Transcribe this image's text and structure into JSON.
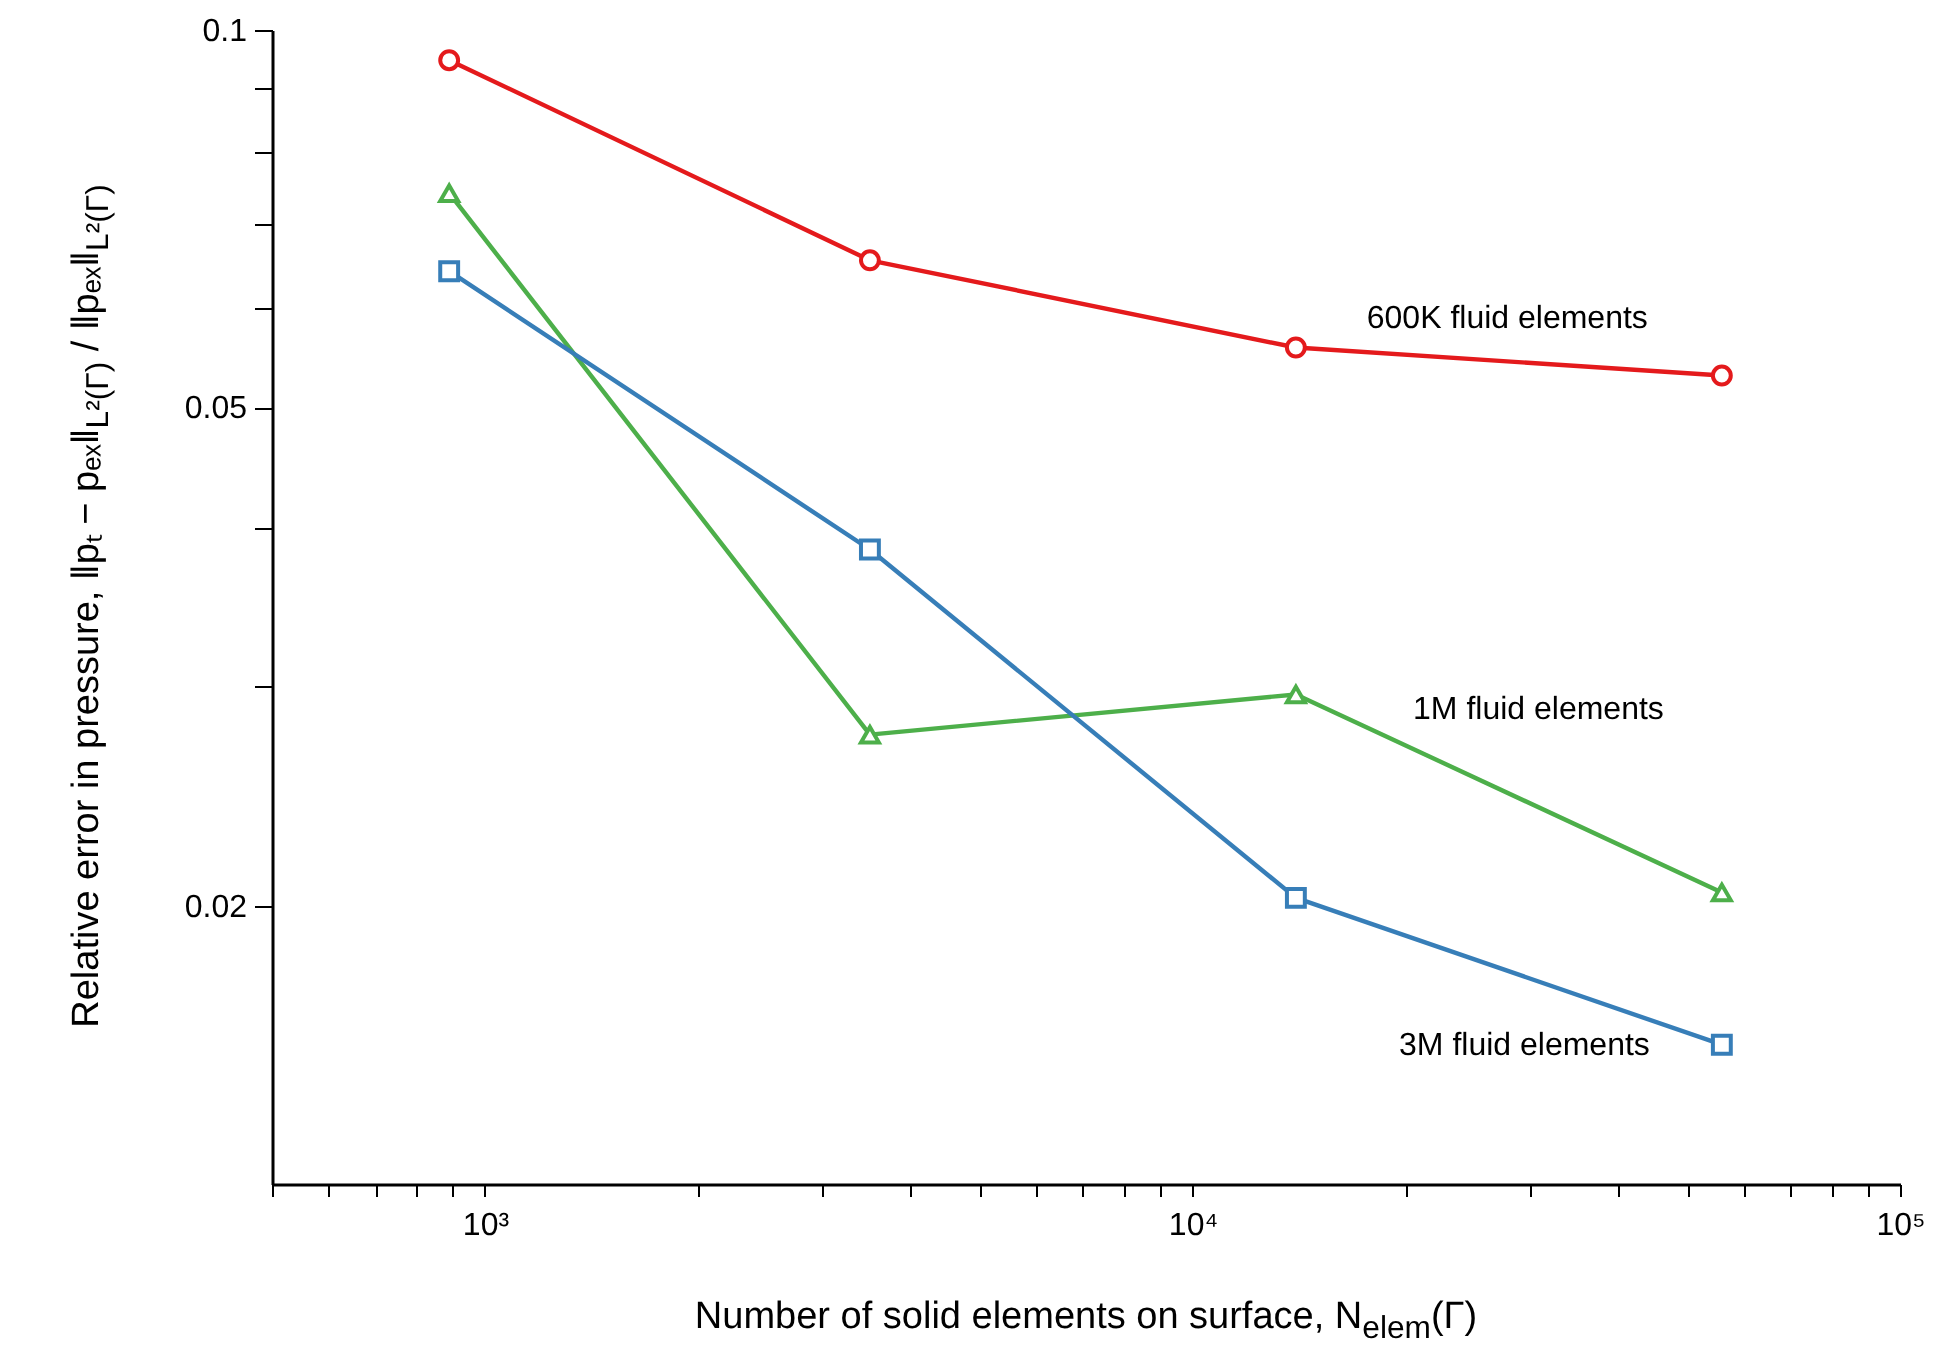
{
  "chart_data": {
    "type": "line",
    "xlabel": "Number of solid elements on surface,  N$_{elem}$(Γ)",
    "ylabel": "Relative error in pressure,  ‖pₜ − pₑₓ‖$_{L²(Γ)}$ / ‖pₑₓ‖$_{L²(Γ)}$",
    "x": [
      890,
      3500,
      14000,
      56000
    ],
    "series": [
      {
        "name": "600K fluid elements",
        "color": "#e41a1c",
        "marker": "circle",
        "values": [
          0.0946,
          0.0655,
          0.0558,
          0.053
        ]
      },
      {
        "name": "1M fluid elements",
        "color": "#4daf4a",
        "marker": "triangle",
        "values": [
          0.0741,
          0.0274,
          0.0295,
          0.0205
        ]
      },
      {
        "name": "3M fluid elements",
        "color": "#377eb8",
        "marker": "square",
        "values": [
          0.0642,
          0.0385,
          0.0203,
          0.0155
        ]
      }
    ],
    "log": "xy",
    "xlim": [
      500,
      100000
    ],
    "xticks": [
      {
        "value": 500,
        "label": null
      },
      {
        "value": 600,
        "label": null
      },
      {
        "value": 700,
        "label": null
      },
      {
        "value": 800,
        "label": null
      },
      {
        "value": 900,
        "label": null
      },
      {
        "value": 1000,
        "label": "10³"
      },
      {
        "value": 2000,
        "label": null
      },
      {
        "value": 3000,
        "label": null
      },
      {
        "value": 4000,
        "label": null
      },
      {
        "value": 5000,
        "label": null
      },
      {
        "value": 6000,
        "label": null
      },
      {
        "value": 7000,
        "label": null
      },
      {
        "value": 8000,
        "label": null
      },
      {
        "value": 9000,
        "label": null
      },
      {
        "value": 10000,
        "label": "10⁴"
      },
      {
        "value": 20000,
        "label": null
      },
      {
        "value": 30000,
        "label": null
      },
      {
        "value": 40000,
        "label": null
      },
      {
        "value": 50000,
        "label": null
      },
      {
        "value": 60000,
        "label": null
      },
      {
        "value": 70000,
        "label": null
      },
      {
        "value": 80000,
        "label": null
      },
      {
        "value": 90000,
        "label": null
      },
      {
        "value": 100000,
        "label": "10⁵"
      }
    ],
    "ylim": [
      0.012,
      0.1
    ],
    "yticks": [
      0.1,
      {
        "value": 0.09,
        "label": null
      },
      {
        "value": 0.08,
        "label": null
      },
      {
        "value": 0.07,
        "label": null
      },
      {
        "value": 0.06,
        "label": null
      },
      0.05,
      {
        "value": 0.04,
        "label": null
      },
      {
        "value": 0.03,
        "label": null
      },
      0.02
    ],
    "grid": false,
    "legend": false,
    "line_style": "solid"
  }
}
